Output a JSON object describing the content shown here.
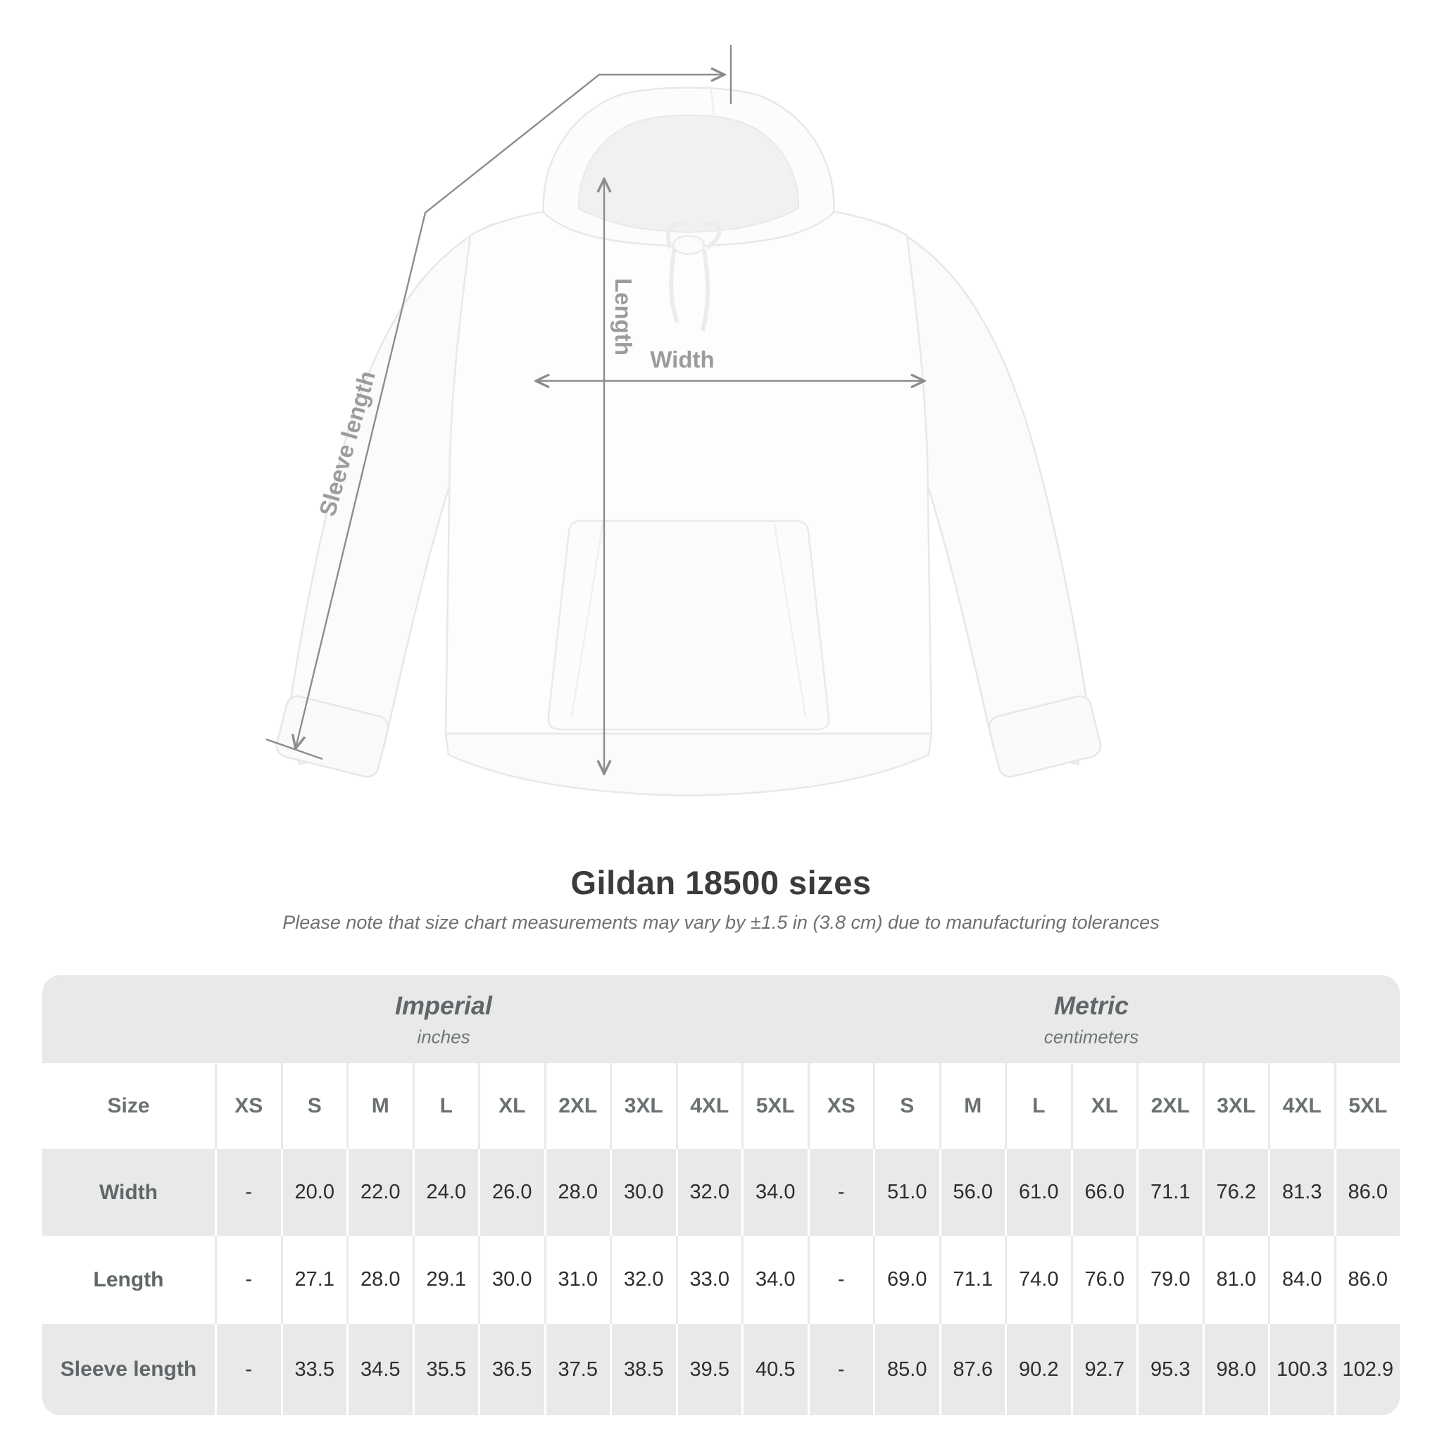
{
  "title": "Gildan 18500 sizes",
  "subtitle": "Please note that size chart measurements may vary by ±1.5 in (3.8 cm) due to manufacturing tolerances",
  "diagram": {
    "product": "white pullover hoodie",
    "length_label": "Length",
    "width_label": "Width",
    "sleeve_label": "Sleeve length"
  },
  "table": {
    "size_header_label": "Size",
    "sizes": [
      "XS",
      "S",
      "M",
      "L",
      "XL",
      "2XL",
      "3XL",
      "4XL",
      "5XL"
    ],
    "unit_groups": [
      {
        "name": "Imperial",
        "unit": "inches"
      },
      {
        "name": "Metric",
        "unit": "centimeters"
      }
    ],
    "rows": [
      {
        "label": "Width",
        "imperial": [
          "-",
          "20.0",
          "22.0",
          "24.0",
          "26.0",
          "28.0",
          "30.0",
          "32.0",
          "34.0"
        ],
        "metric": [
          "-",
          "51.0",
          "56.0",
          "61.0",
          "66.0",
          "71.1",
          "76.2",
          "81.3",
          "86.0"
        ]
      },
      {
        "label": "Length",
        "imperial": [
          "-",
          "27.1",
          "28.0",
          "29.1",
          "30.0",
          "31.0",
          "32.0",
          "33.0",
          "34.0"
        ],
        "metric": [
          "-",
          "69.0",
          "71.1",
          "74.0",
          "76.0",
          "79.0",
          "81.0",
          "84.0",
          "86.0"
        ]
      },
      {
        "label": "Sleeve length",
        "imperial": [
          "-",
          "33.5",
          "34.5",
          "35.5",
          "36.5",
          "37.5",
          "38.5",
          "39.5",
          "40.5"
        ],
        "metric": [
          "-",
          "85.0",
          "87.6",
          "90.2",
          "92.7",
          "95.3",
          "98.0",
          "100.3",
          "102.9"
        ]
      }
    ]
  },
  "colors": {
    "measure_line": "#8d8d8d",
    "measure_label": "#9c9c9c",
    "title_text": "#3b3b3b",
    "subtitle_text": "#707070",
    "table_band": "#e9e9e9",
    "header_text": "#6b7173",
    "value_text": "#2e2e2e",
    "row_label_text": "#5f6769"
  }
}
